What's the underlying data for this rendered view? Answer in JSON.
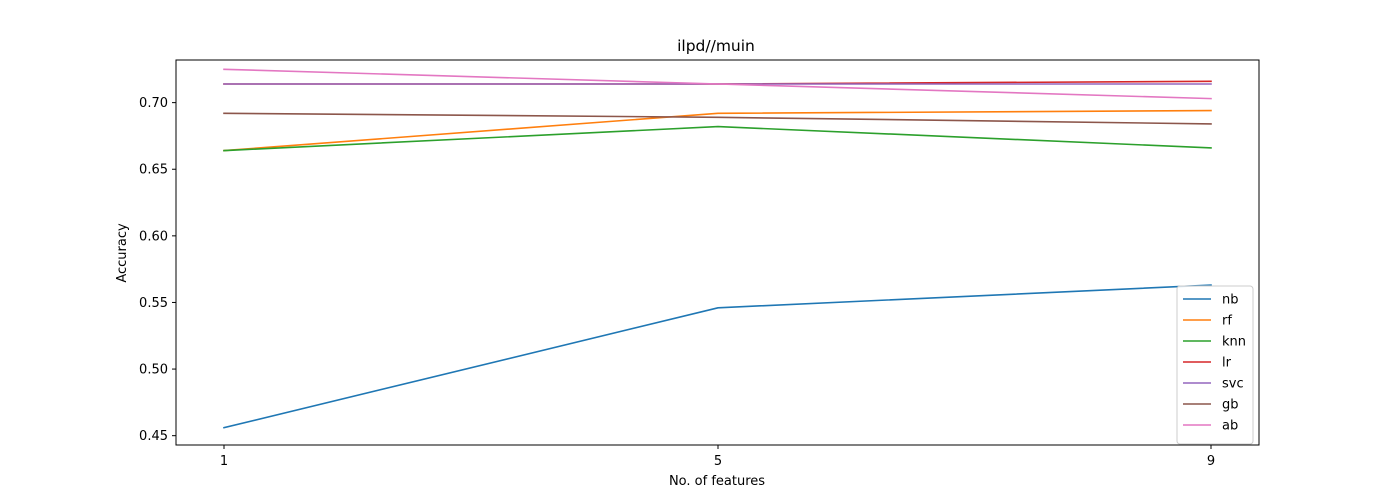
{
  "chart_data": {
    "type": "line",
    "title": "ilpd//muin",
    "xlabel": "No. of features",
    "ylabel": "Accuracy",
    "x": [
      1,
      5,
      9
    ],
    "xticks": [
      "1",
      "5",
      "9"
    ],
    "ylim": [
      0.443,
      0.732
    ],
    "yticks": [
      "0.45",
      "0.50",
      "0.55",
      "0.60",
      "0.65",
      "0.70"
    ],
    "grid": false,
    "legend_position": "lower-right",
    "series": [
      {
        "name": "nb",
        "color": "#1f77b4",
        "values": [
          0.456,
          0.546,
          0.563
        ]
      },
      {
        "name": "rf",
        "color": "#ff7f0e",
        "values": [
          0.664,
          0.692,
          0.694
        ]
      },
      {
        "name": "knn",
        "color": "#2ca02c",
        "values": [
          0.664,
          0.682,
          0.666
        ]
      },
      {
        "name": "lr",
        "color": "#d62728",
        "values": [
          0.714,
          0.714,
          0.716
        ]
      },
      {
        "name": "svc",
        "color": "#9467bd",
        "values": [
          0.714,
          0.714,
          0.714
        ]
      },
      {
        "name": "gb",
        "color": "#8c564b",
        "values": [
          0.692,
          0.689,
          0.684
        ]
      },
      {
        "name": "ab",
        "color": "#e377c2",
        "values": [
          0.725,
          0.714,
          0.703
        ]
      }
    ]
  }
}
